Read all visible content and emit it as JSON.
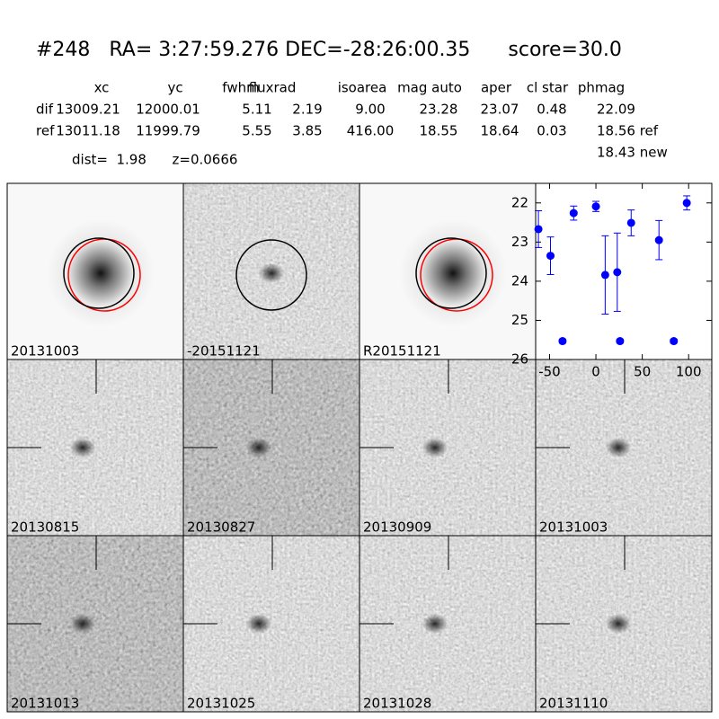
{
  "header": {
    "title": "#248   RA= 3:27:59.276 DEC=-28:26:00.35      score=30.0",
    "dist": "dist=  1.98      z=0.0666"
  },
  "table": {
    "columns": [
      "xc",
      "yc",
      "fwhm",
      "fluxrad",
      "isoarea",
      "mag auto",
      "aper",
      "cl star",
      "phmag"
    ],
    "rows": [
      {
        "label": "dif",
        "cells": [
          "13009.21",
          "12000.01",
          "5.11",
          "2.19",
          "9.00",
          "23.28",
          "23.07",
          "0.48",
          "22.09"
        ]
      },
      {
        "label": "ref",
        "cells": [
          "13011.18",
          "11999.79",
          "5.55",
          "3.85",
          "416.00",
          "18.55",
          "18.64",
          "0.03",
          "18.56 ref"
        ]
      }
    ],
    "extra": "18.43 new"
  },
  "images": [
    "20131003",
    "-20151121",
    "R20151121",
    "20130815",
    "20130827",
    "20130909",
    "20131003",
    "20131013",
    "20131025",
    "20131028",
    "20131110"
  ],
  "chart_data": {
    "type": "scatter",
    "series": [
      {
        "color": "#0000ff",
        "x": [
          -62,
          -49,
          -36,
          -24,
          0,
          10,
          23,
          26,
          38,
          68,
          84,
          98
        ],
        "values": [
          22.67,
          23.35,
          25.53,
          22.26,
          22.09,
          23.84,
          23.77,
          25.53,
          22.51,
          22.95,
          25.53,
          22.0
        ],
        "errors": [
          0.47,
          0.48,
          0.05,
          0.18,
          0.13,
          1.0,
          1.0,
          0.05,
          0.33,
          0.5,
          0.05,
          0.18
        ]
      }
    ],
    "xlim": [
      -65,
      125
    ],
    "ylim": [
      26,
      21.5
    ],
    "inverted_y": true,
    "xticks": [
      -50,
      0,
      50,
      100
    ],
    "yticks": [
      22,
      23,
      24,
      25,
      26
    ]
  }
}
